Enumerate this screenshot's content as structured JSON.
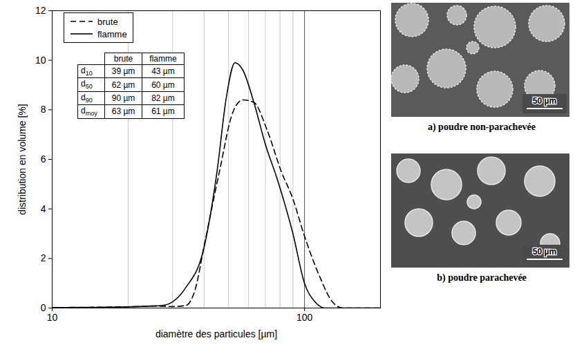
{
  "chart_data": {
    "type": "line",
    "x_label": "diamètre des particules [µm]",
    "y_label": "distribution en volume [%]",
    "log": "x",
    "xlim": [
      10,
      200
    ],
    "xticks": [
      10,
      100
    ],
    "ylim": [
      0,
      12
    ],
    "yticks": [
      0,
      2,
      4,
      6,
      8,
      10,
      12
    ],
    "grid": "x",
    "legend": "upper left",
    "series": [
      {
        "name": "brute",
        "color": "#000000",
        "line_style": "dashed",
        "x": [
          10,
          20,
          25,
          30,
          33.8,
          37,
          40,
          46,
          52,
          57,
          63,
          71,
          81,
          90,
          100,
          114,
          129,
          142,
          200
        ],
        "values": [
          0.02,
          0.05,
          0.08,
          0.06,
          0.1,
          0.8,
          2.5,
          5.5,
          7.9,
          8.4,
          8.3,
          7.2,
          5.5,
          4.4,
          2.9,
          1.35,
          0.25,
          0,
          0
        ]
      },
      {
        "name": "flamme",
        "color": "#000000",
        "line_style": "solid",
        "x": [
          10,
          20,
          25,
          28,
          30,
          33.7,
          40,
          45,
          49,
          53,
          57,
          63,
          70,
          78,
          90,
          100,
          110,
          121,
          200
        ],
        "values": [
          0.02,
          0.05,
          0.08,
          0.12,
          0.25,
          0.8,
          2.45,
          5.5,
          8.5,
          9.9,
          9.6,
          8.3,
          6.6,
          5.2,
          3.0,
          1.0,
          0.25,
          0,
          0
        ]
      }
    ],
    "table": {
      "header": [
        "brute",
        "flamme"
      ],
      "rows": [
        [
          "d10",
          "39 µm",
          "43 µm"
        ],
        [
          "d50",
          "62 µm",
          "60 µm"
        ],
        [
          "d90",
          "90 µm",
          "82 µm"
        ],
        [
          "dmoy",
          "63 µm",
          "61 µm"
        ]
      ]
    }
  },
  "images": [
    {
      "caption": "a) poudre non-parachevée",
      "scale_bar": "50 µm"
    },
    {
      "caption": "b) poudre parachevée",
      "scale_bar": "50 µm"
    }
  ]
}
